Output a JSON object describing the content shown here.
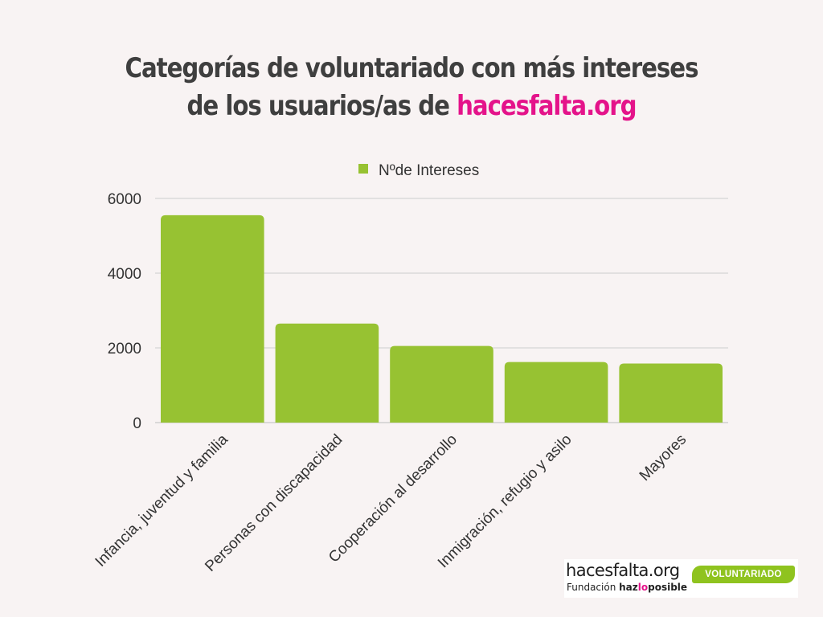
{
  "title": {
    "line1": "Categorías de voluntariado con más intereses",
    "line2_prefix": "de los usuarios/as de ",
    "line2_brand": "hacesfalta.org"
  },
  "colors": {
    "background": "#f8f3f3",
    "bar": "#97c232",
    "title": "#3f3f3f",
    "brand": "#e4138a",
    "grid": "#cccccc"
  },
  "chart_data": {
    "type": "bar",
    "categories": [
      "Infancia, juventud y familia",
      "Personas con discapacidad",
      "Cooperación al desarrollo",
      "Inmigración, refugio y asilo",
      "Mayores"
    ],
    "series": [
      {
        "name": "Nºde Intereses",
        "values": [
          5550,
          2650,
          2050,
          1620,
          1580
        ]
      }
    ],
    "ylim": [
      0,
      6000
    ],
    "yticks": [
      0,
      2000,
      4000,
      6000
    ],
    "grid": true,
    "legend": "top-center",
    "xlabel": "",
    "ylabel": ""
  },
  "logo": {
    "name": "hacesfalta.org",
    "sub_prefix": "Fundación ",
    "sub_part1": "haz",
    "sub_part2": "lo",
    "sub_part3": "posible",
    "badge": "VOLUNTARIADO"
  }
}
